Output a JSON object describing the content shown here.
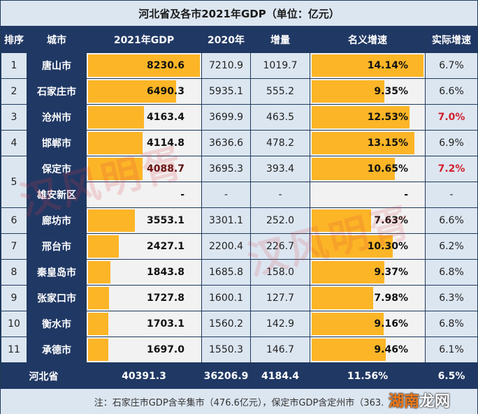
{
  "title": "河北省及各市2021年GDP（单位：亿元）",
  "headers": [
    "排序",
    "城市",
    "2021年GDP",
    "2020年",
    "增量",
    "名义增速",
    "实际增速"
  ],
  "colors": {
    "header_bg": "#203864",
    "cell_bg": "#dce6f1",
    "bar_bg": "#f2f2f2",
    "bar_fill": "#fcb526",
    "highlight_red": "#d0202c"
  },
  "rows": [
    {
      "rank": "1",
      "city": "唐山市",
      "gdp2021": "8230.6",
      "gdp2020": "7210.9",
      "increase": "1019.7",
      "nominal": "14.14%",
      "real": "6.7%",
      "gdp_bar": 100,
      "nominal_bar": 100,
      "real_red": false
    },
    {
      "rank": "2",
      "city": "石家庄市",
      "gdp2021": "6490.3",
      "gdp2020": "5935.1",
      "increase": "555.2",
      "nominal": "9.35%",
      "real": "6.6%",
      "gdp_bar": 79,
      "nominal_bar": 66,
      "real_red": false
    },
    {
      "rank": "3",
      "city": "沧州市",
      "gdp2021": "4163.4",
      "gdp2020": "3699.9",
      "increase": "463.5",
      "nominal": "12.53%",
      "real": "7.0%",
      "gdp_bar": 51,
      "nominal_bar": 88,
      "real_red": true
    },
    {
      "rank": "4",
      "city": "邯郸市",
      "gdp2021": "4114.8",
      "gdp2020": "3636.6",
      "increase": "478.2",
      "nominal": "13.15%",
      "real": "6.9%",
      "gdp_bar": 50,
      "nominal_bar": 92,
      "real_red": false
    },
    {
      "rank": "5",
      "city": "保定市",
      "gdp2021": "4088.7",
      "gdp2020": "3695.3",
      "increase": "393.4",
      "nominal": "10.65%",
      "real": "7.2%",
      "gdp_bar": 50,
      "nominal_bar": 75,
      "real_red": true
    },
    {
      "rank": "",
      "city": "雄安新区",
      "gdp2021": "-",
      "gdp2020": "-",
      "increase": "-",
      "nominal": "-",
      "real": "-",
      "gdp_bar": 0,
      "nominal_bar": 0,
      "real_red": false
    },
    {
      "rank": "6",
      "city": "廊坊市",
      "gdp2021": "3553.1",
      "gdp2020": "3301.1",
      "increase": "252.0",
      "nominal": "7.63%",
      "real": "6.6%",
      "gdp_bar": 43,
      "nominal_bar": 54,
      "real_red": false
    },
    {
      "rank": "7",
      "city": "邢台市",
      "gdp2021": "2427.1",
      "gdp2020": "2200.4",
      "increase": "226.7",
      "nominal": "10.30%",
      "real": "6.2%",
      "gdp_bar": 29,
      "nominal_bar": 73,
      "real_red": false
    },
    {
      "rank": "8",
      "city": "秦皇岛市",
      "gdp2021": "1843.8",
      "gdp2020": "1685.8",
      "increase": "158.0",
      "nominal": "9.37%",
      "real": "6.8%",
      "gdp_bar": 22,
      "nominal_bar": 66,
      "real_red": false
    },
    {
      "rank": "9",
      "city": "张家口市",
      "gdp2021": "1727.8",
      "gdp2020": "1600.1",
      "increase": "127.7",
      "nominal": "7.98%",
      "real": "6.3%",
      "gdp_bar": 21,
      "nominal_bar": 56,
      "real_red": false
    },
    {
      "rank": "10",
      "city": "衡水市",
      "gdp2021": "1703.1",
      "gdp2020": "1560.2",
      "increase": "142.9",
      "nominal": "9.16%",
      "real": "6.8%",
      "gdp_bar": 20,
      "nominal_bar": 65,
      "real_red": false
    },
    {
      "rank": "11",
      "city": "承德市",
      "gdp2021": "1697.0",
      "gdp2020": "1550.3",
      "increase": "146.7",
      "nominal": "9.46%",
      "real": "6.1%",
      "gdp_bar": 20,
      "nominal_bar": 67,
      "real_red": false
    }
  ],
  "total": {
    "label": "河北省",
    "gdp2021": "40391.3",
    "gdp2020": "36206.9",
    "increase": "4184.4",
    "nominal": "11.56%",
    "real": "6.5%"
  },
  "note": "注：石家庄市GDP含辛集市（476.6亿元），保定市GDP含定州市（363.",
  "watermarks": {
    "main": "汉风明胥",
    "second": "汉风明胥",
    "site_a": "湖南",
    "site_b": "龙网"
  }
}
